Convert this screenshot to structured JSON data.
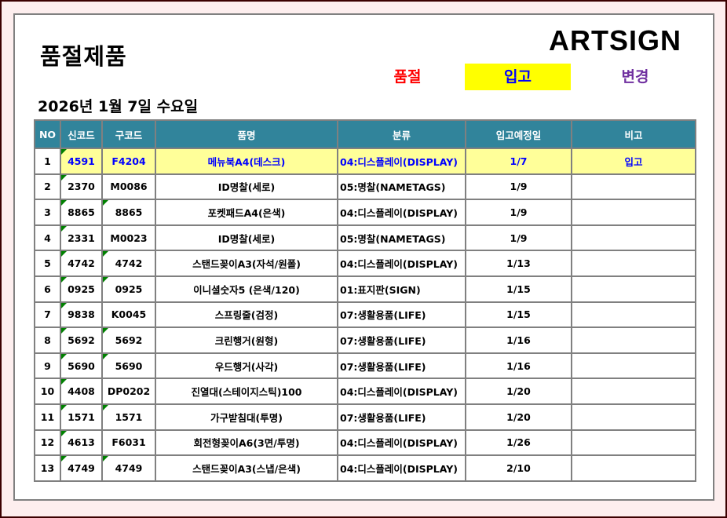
{
  "header": {
    "title": "품절제품",
    "logo": "ARTSIGN",
    "date": "2026년 1월 7일 수요일"
  },
  "status": {
    "sold_out": "품절",
    "incoming": "입고",
    "changed": "변경",
    "colors": {
      "sold_out": "#ff0000",
      "incoming": "#0000ff",
      "incoming_bg": "#ffff00",
      "changed": "#7030a0"
    }
  },
  "table": {
    "columns": [
      "NO",
      "신코드",
      "구코드",
      "품명",
      "분류",
      "입고예정일",
      "비고"
    ],
    "header_color": "#31849b",
    "highlight_color": "#ffff99",
    "rows": [
      {
        "no": "1",
        "new": "4591",
        "old": "F4204",
        "name": "메뉴북A4(데스크)",
        "cat": "04:디스플레이(DISPLAY)",
        "date": "1/7",
        "note": "입고",
        "hl": true,
        "old_mark": false
      },
      {
        "no": "2",
        "new": "2370",
        "old": "M0086",
        "name": "ID명찰(세로)",
        "cat": "05:명찰(NAMETAGS)",
        "date": "1/9",
        "note": "",
        "old_mark": false
      },
      {
        "no": "3",
        "new": "8865",
        "old": "8865",
        "name": "포켓패드A4(은색)",
        "cat": "04:디스플레이(DISPLAY)",
        "date": "1/9",
        "note": "",
        "old_mark": true
      },
      {
        "no": "4",
        "new": "2331",
        "old": "M0023",
        "name": "ID명찰(세로)",
        "cat": "05:명찰(NAMETAGS)",
        "date": "1/9",
        "note": "",
        "old_mark": false
      },
      {
        "no": "5",
        "new": "4742",
        "old": "4742",
        "name": "스탠드꽂이A3(자석/원폴)",
        "cat": "04:디스플레이(DISPLAY)",
        "date": "1/13",
        "note": "",
        "old_mark": true
      },
      {
        "no": "6",
        "new": "0925",
        "old": "0925",
        "name": "이니셜숫자5 (은색/120)",
        "cat": "01:표지판(SIGN)",
        "date": "1/15",
        "note": "",
        "old_mark": true
      },
      {
        "no": "7",
        "new": "9838",
        "old": "K0045",
        "name": "스프링줄(검정)",
        "cat": "07:생활용품(LIFE)",
        "date": "1/15",
        "note": "",
        "old_mark": false
      },
      {
        "no": "8",
        "new": "5692",
        "old": "5692",
        "name": "크린행거(원형)",
        "cat": "07:생활용품(LIFE)",
        "date": "1/16",
        "note": "",
        "old_mark": true
      },
      {
        "no": "9",
        "new": "5690",
        "old": "5690",
        "name": "우드행거(사각)",
        "cat": "07:생활용품(LIFE)",
        "date": "1/16",
        "note": "",
        "old_mark": true
      },
      {
        "no": "10",
        "new": "4408",
        "old": "DP0202",
        "name": "진열대(스테이지스틱)100",
        "cat": "04:디스플레이(DISPLAY)",
        "date": "1/20",
        "note": "",
        "old_mark": false
      },
      {
        "no": "11",
        "new": "1571",
        "old": "1571",
        "name": "가구받침대(투명)",
        "cat": "07:생활용품(LIFE)",
        "date": "1/20",
        "note": "",
        "old_mark": true
      },
      {
        "no": "12",
        "new": "4613",
        "old": "F6031",
        "name": "회전형꽂이A6(3면/투명)",
        "cat": "04:디스플레이(DISPLAY)",
        "date": "1/26",
        "note": "",
        "old_mark": false
      },
      {
        "no": "13",
        "new": "4749",
        "old": "4749",
        "name": "스탠드꽂이A3(스냅/은색)",
        "cat": "04:디스플레이(DISPLAY)",
        "date": "2/10",
        "note": "",
        "old_mark": true
      }
    ]
  }
}
